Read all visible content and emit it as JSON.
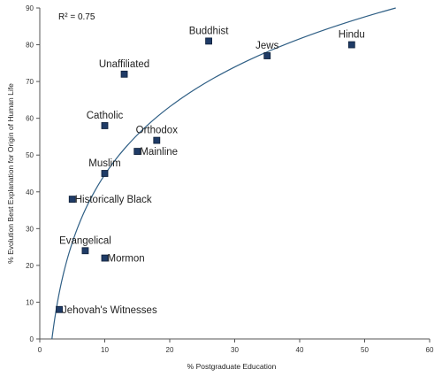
{
  "chart_data": {
    "type": "scatter",
    "title": "",
    "xlabel": "% Postgraduate Education",
    "ylabel": "% Evolution Best Explanation for Origin of Human Life",
    "xlim": [
      0,
      60
    ],
    "ylim": [
      0,
      90
    ],
    "xticks": [
      0,
      10,
      20,
      30,
      40,
      50,
      60
    ],
    "yticks": [
      0,
      10,
      20,
      30,
      40,
      50,
      60,
      70,
      80,
      90
    ],
    "grid": false,
    "marker_color": "#1f3b66",
    "trendline": {
      "type": "logarithmic",
      "color": "#2f5f85",
      "r_squared_label": "R² = 0.75"
    },
    "points": [
      {
        "label": "Buddhist",
        "x": 26,
        "y": 81,
        "label_pos": "above"
      },
      {
        "label": "Jews",
        "x": 35,
        "y": 77,
        "label_pos": "above"
      },
      {
        "label": "Hindu",
        "x": 48,
        "y": 80,
        "label_pos": "above"
      },
      {
        "label": "Unaffiliated",
        "x": 13,
        "y": 72,
        "label_pos": "above"
      },
      {
        "label": "Catholic",
        "x": 10,
        "y": 58,
        "label_pos": "above"
      },
      {
        "label": "Orthodox",
        "x": 18,
        "y": 54,
        "label_pos": "above"
      },
      {
        "label": "Mainline",
        "x": 15,
        "y": 51,
        "label_pos": "right"
      },
      {
        "label": "Muslim",
        "x": 10,
        "y": 45,
        "label_pos": "above"
      },
      {
        "label": "Historically Black",
        "x": 5,
        "y": 38,
        "label_pos": "right"
      },
      {
        "label": "Evangelical",
        "x": 7,
        "y": 24,
        "label_pos": "above"
      },
      {
        "label": "Mormon",
        "x": 10,
        "y": 22,
        "label_pos": "right"
      },
      {
        "label": "Jehovah's Witnesses",
        "x": 3,
        "y": 8,
        "label_pos": "right"
      }
    ]
  }
}
